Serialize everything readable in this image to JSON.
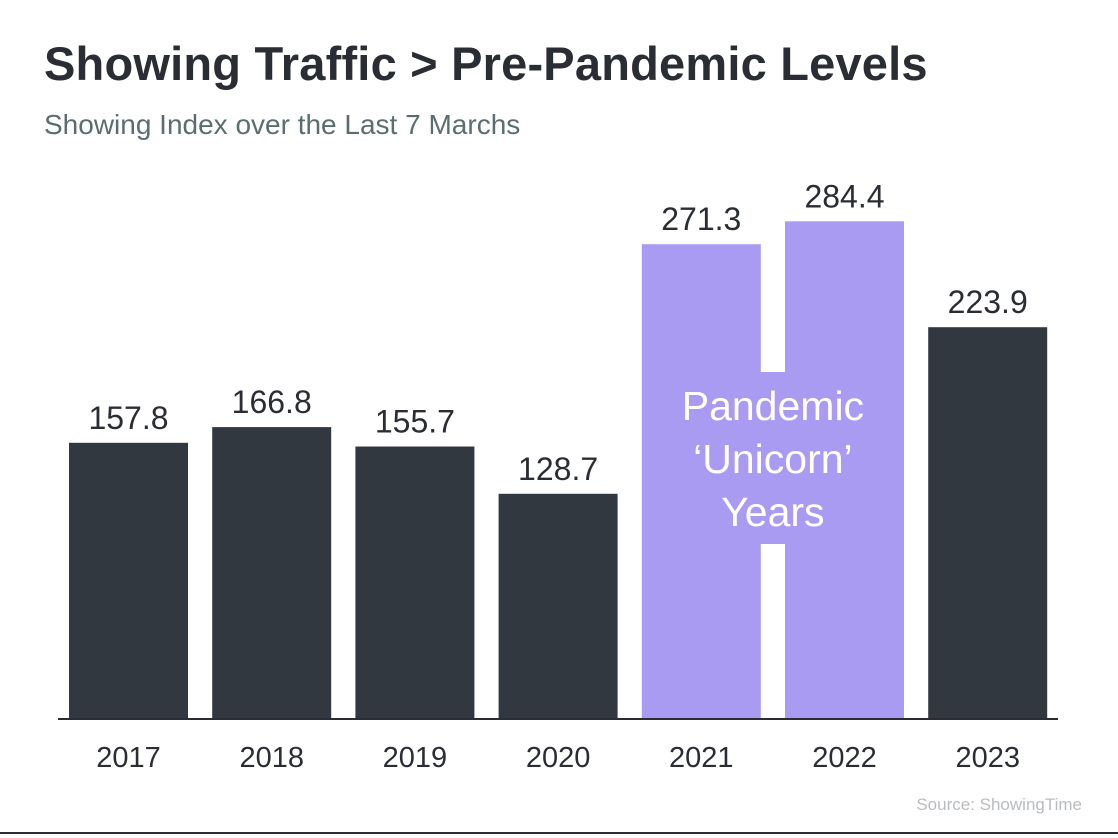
{
  "header": {
    "title": "Showing Traffic > Pre-Pandemic Levels",
    "subtitle": "Showing Index over the Last 7 Marchs"
  },
  "footer": {
    "source": "Source: ShowingTime"
  },
  "colors": {
    "bar_default": "#323840",
    "bar_highlight": "#a99bf2",
    "annotation_text": "#ffffff",
    "label_text": "#2a2d33",
    "axis": "#2a2d33"
  },
  "chart_data": {
    "type": "bar",
    "title": "Showing Traffic > Pre-Pandemic Levels",
    "subtitle": "Showing Index over the Last 7 Marchs",
    "xlabel": "",
    "ylabel": "",
    "ylim": [
      0,
      300
    ],
    "grid": false,
    "categories": [
      "2017",
      "2018",
      "2019",
      "2020",
      "2021",
      "2022",
      "2023"
    ],
    "values": [
      157.8,
      166.8,
      155.7,
      128.7,
      271.3,
      284.4,
      223.9
    ],
    "value_labels": [
      "157.8",
      "166.8",
      "155.7",
      "128.7",
      "271.3",
      "284.4",
      "223.9"
    ],
    "highlighted": [
      "2021",
      "2022"
    ],
    "annotation": {
      "lines": [
        "Pandemic",
        "‘Unicorn’",
        "Years"
      ],
      "spans": [
        "2021",
        "2022"
      ]
    }
  }
}
